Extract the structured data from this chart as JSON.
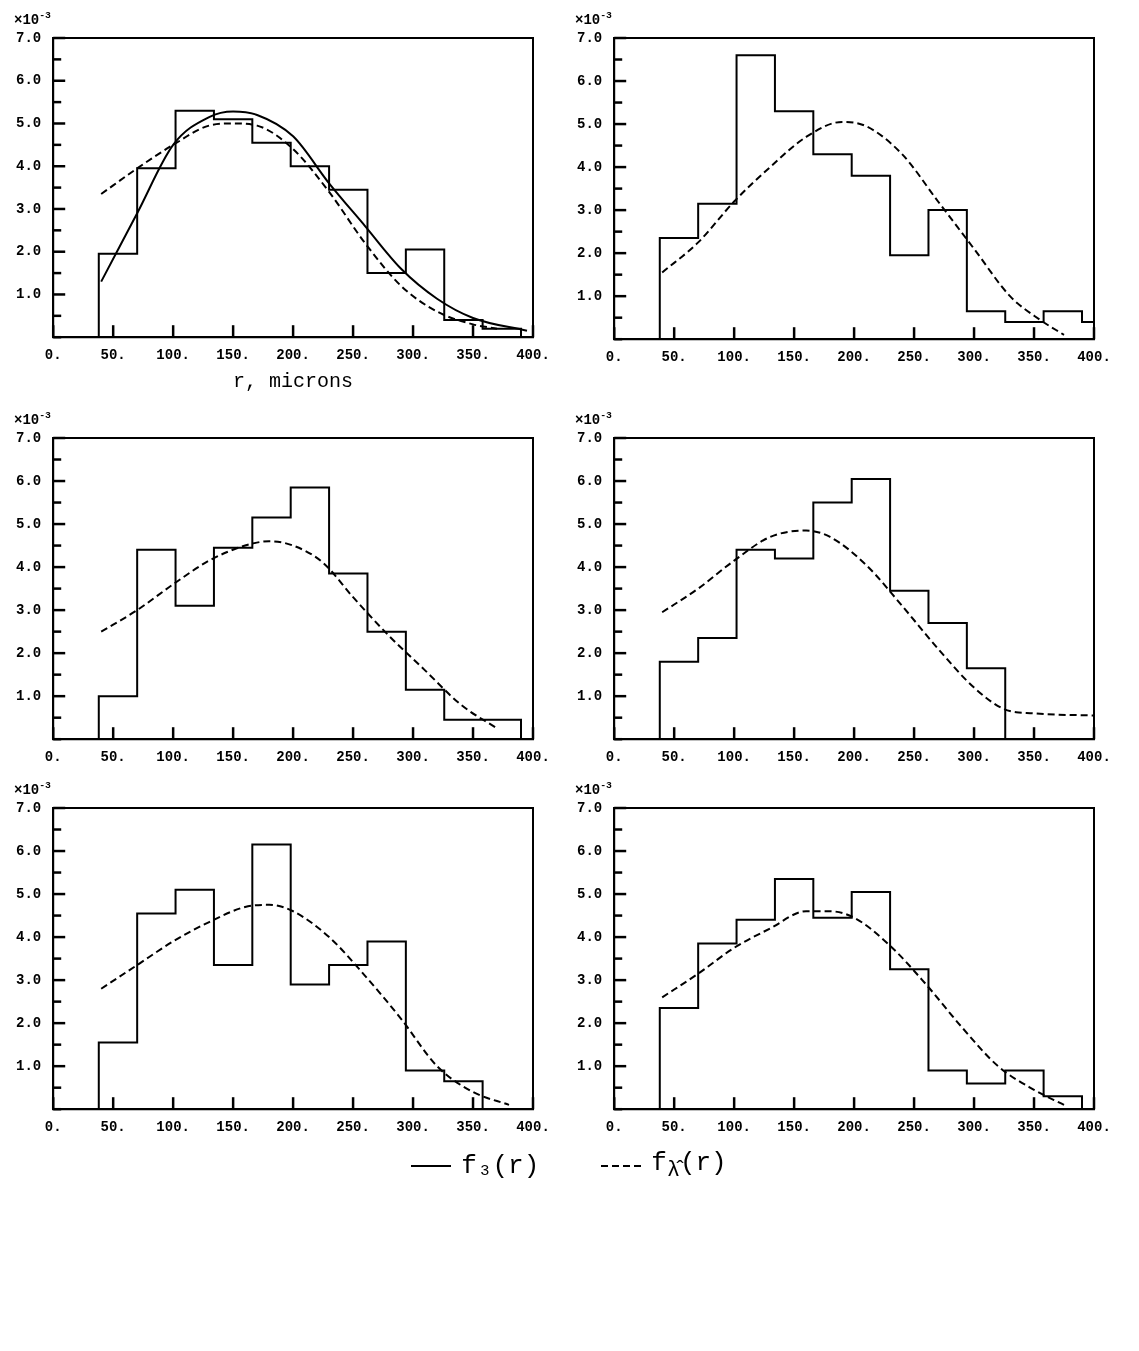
{
  "chart_data": [
    {
      "type": "histogram",
      "ylabel": "×10$^{-3}$",
      "xlabel": "r, microns",
      "color": "#000000",
      "legend": "bottom",
      "bins": [
        38,
        70,
        102,
        134,
        166,
        198,
        230,
        262,
        294,
        326,
        358,
        390
      ],
      "values": [
        1.95,
        3.95,
        5.3,
        5.1,
        4.55,
        4.0,
        3.45,
        1.5,
        2.05,
        0.4,
        0.2
      ],
      "series": [
        {
          "type": "line",
          "name": "f₃(r)",
          "color": "#000000",
          "line_style": "solid",
          "x": [
            40,
            70,
            100,
            130,
            150,
            170,
            200,
            230,
            260,
            290,
            320,
            350,
            395
          ],
          "values": [
            1.3,
            2.9,
            4.5,
            5.15,
            5.28,
            5.2,
            4.7,
            3.6,
            2.6,
            1.6,
            0.9,
            0.45,
            0.15
          ]
        },
        {
          "type": "line",
          "name": "f$_{λ̂}$(r)",
          "color": "#000000",
          "line_style": "dashed",
          "x": [
            40,
            70,
            100,
            130,
            150,
            170,
            200,
            230,
            260,
            290,
            320,
            350,
            370
          ],
          "values": [
            3.35,
            3.95,
            4.5,
            4.95,
            5.0,
            4.95,
            4.4,
            3.4,
            2.2,
            1.2,
            0.6,
            0.3,
            0.2
          ]
        }
      ],
      "xlim": [
        0,
        400
      ],
      "ylim": [
        0,
        7
      ],
      "xticks": [
        {
          "value": 0,
          "label": "0."
        },
        {
          "value": 50,
          "label": "50."
        },
        {
          "value": 100,
          "label": "100."
        },
        {
          "value": 150,
          "label": "150."
        },
        {
          "value": 200,
          "label": "200."
        },
        {
          "value": 250,
          "label": "250."
        },
        {
          "value": 300,
          "label": "300."
        },
        {
          "value": 350,
          "label": "350."
        },
        {
          "value": 400,
          "label": "400."
        }
      ],
      "yticks": [
        {
          "value": 0,
          "label": null
        },
        {
          "value": 0.5,
          "label": null
        },
        {
          "value": 1,
          "label": "1.0"
        },
        {
          "value": 1.5,
          "label": null
        },
        {
          "value": 2,
          "label": "2.0"
        },
        {
          "value": 2.5,
          "label": null
        },
        {
          "value": 3,
          "label": "3.0"
        },
        {
          "value": 3.5,
          "label": null
        },
        {
          "value": 4,
          "label": "4.0"
        },
        {
          "value": 4.5,
          "label": null
        },
        {
          "value": 5,
          "label": "5.0"
        },
        {
          "value": 5.5,
          "label": null
        },
        {
          "value": 6,
          "label": "6.0"
        },
        {
          "value": 6.5,
          "label": null
        },
        {
          "value": 7,
          "label": "7.0"
        }
      ]
    },
    {
      "type": "histogram",
      "ylabel": "×10$^{-3}$",
      "color": "#000000",
      "bins": [
        38,
        70,
        102,
        134,
        166,
        198,
        230,
        262,
        294,
        326,
        358,
        390,
        400
      ],
      "values": [
        2.35,
        3.15,
        6.6,
        5.3,
        4.3,
        3.8,
        1.95,
        3.0,
        0.65,
        0.4,
        0.65,
        0.4
      ],
      "series": [
        {
          "type": "line",
          "color": "#000000",
          "line_style": "dashed",
          "x": [
            40,
            70,
            100,
            130,
            160,
            190,
            210,
            240,
            270,
            300,
            330,
            355,
            375
          ],
          "values": [
            1.55,
            2.25,
            3.2,
            4.0,
            4.7,
            5.05,
            4.95,
            4.3,
            3.2,
            2.1,
            1.0,
            0.45,
            0.1
          ]
        }
      ],
      "xlim": [
        0,
        400
      ],
      "ylim": [
        0,
        7
      ],
      "xticks": [
        {
          "value": 0,
          "label": "0."
        },
        {
          "value": 50,
          "label": "50."
        },
        {
          "value": 100,
          "label": "100."
        },
        {
          "value": 150,
          "label": "150."
        },
        {
          "value": 200,
          "label": "200."
        },
        {
          "value": 250,
          "label": "250."
        },
        {
          "value": 300,
          "label": "300."
        },
        {
          "value": 350,
          "label": "350."
        },
        {
          "value": 400,
          "label": "400."
        }
      ],
      "yticks": [
        {
          "value": 0,
          "label": null
        },
        {
          "value": 0.5,
          "label": null
        },
        {
          "value": 1,
          "label": "1.0"
        },
        {
          "value": 1.5,
          "label": null
        },
        {
          "value": 2,
          "label": "2.0"
        },
        {
          "value": 2.5,
          "label": null
        },
        {
          "value": 3,
          "label": "3.0"
        },
        {
          "value": 3.5,
          "label": null
        },
        {
          "value": 4,
          "label": "4.0"
        },
        {
          "value": 4.5,
          "label": null
        },
        {
          "value": 5,
          "label": "5.0"
        },
        {
          "value": 5.5,
          "label": null
        },
        {
          "value": 6,
          "label": "6.0"
        },
        {
          "value": 6.5,
          "label": null
        },
        {
          "value": 7,
          "label": "7.0"
        }
      ]
    },
    {
      "type": "histogram",
      "ylabel": "×10$^{-3}$",
      "color": "#000000",
      "bins": [
        38,
        70,
        102,
        134,
        166,
        198,
        230,
        262,
        294,
        326,
        358,
        390
      ],
      "values": [
        1.0,
        4.4,
        3.1,
        4.45,
        5.15,
        5.85,
        3.85,
        2.5,
        1.15,
        0.45,
        0.45
      ],
      "series": [
        {
          "type": "line",
          "color": "#000000",
          "line_style": "dashed",
          "x": [
            40,
            70,
            100,
            130,
            160,
            180,
            200,
            225,
            250,
            280,
            310,
            340,
            370
          ],
          "values": [
            2.5,
            3.0,
            3.6,
            4.15,
            4.5,
            4.6,
            4.5,
            4.1,
            3.3,
            2.4,
            1.6,
            0.8,
            0.25
          ]
        }
      ],
      "xlim": [
        0,
        400
      ],
      "ylim": [
        0,
        7
      ],
      "xticks": [
        {
          "value": 0,
          "label": "0."
        },
        {
          "value": 50,
          "label": "50."
        },
        {
          "value": 100,
          "label": "100."
        },
        {
          "value": 150,
          "label": "150."
        },
        {
          "value": 200,
          "label": "200."
        },
        {
          "value": 250,
          "label": "250."
        },
        {
          "value": 300,
          "label": "300."
        },
        {
          "value": 350,
          "label": "350."
        },
        {
          "value": 400,
          "label": "400."
        }
      ],
      "yticks": [
        {
          "value": 0,
          "label": null
        },
        {
          "value": 0.5,
          "label": null
        },
        {
          "value": 1,
          "label": "1.0"
        },
        {
          "value": 1.5,
          "label": null
        },
        {
          "value": 2,
          "label": "2.0"
        },
        {
          "value": 2.5,
          "label": null
        },
        {
          "value": 3,
          "label": "3.0"
        },
        {
          "value": 3.5,
          "label": null
        },
        {
          "value": 4,
          "label": "4.0"
        },
        {
          "value": 4.5,
          "label": null
        },
        {
          "value": 5,
          "label": "5.0"
        },
        {
          "value": 5.5,
          "label": null
        },
        {
          "value": 6,
          "label": "6.0"
        },
        {
          "value": 6.5,
          "label": null
        },
        {
          "value": 7,
          "label": "7.0"
        }
      ]
    },
    {
      "type": "histogram",
      "ylabel": "×10$^{-3}$",
      "color": "#000000",
      "bins": [
        38,
        70,
        102,
        134,
        166,
        198,
        230,
        262,
        294,
        326
      ],
      "values": [
        1.8,
        2.35,
        4.4,
        4.2,
        5.5,
        6.05,
        3.45,
        2.7,
        1.65
      ],
      "series": [
        {
          "type": "line",
          "color": "#000000",
          "line_style": "dashed",
          "x": [
            40,
            70,
            100,
            130,
            160,
            180,
            210,
            240,
            270,
            300,
            325,
            350,
            400
          ],
          "values": [
            2.95,
            3.5,
            4.15,
            4.7,
            4.85,
            4.7,
            4.05,
            3.1,
            2.1,
            1.2,
            0.7,
            0.6,
            0.55
          ]
        }
      ],
      "xlim": [
        0,
        400
      ],
      "ylim": [
        0,
        7
      ],
      "xticks": [
        {
          "value": 0,
          "label": "0."
        },
        {
          "value": 50,
          "label": "50."
        },
        {
          "value": 100,
          "label": "100."
        },
        {
          "value": 150,
          "label": "150."
        },
        {
          "value": 200,
          "label": "200."
        },
        {
          "value": 250,
          "label": "250."
        },
        {
          "value": 300,
          "label": "300."
        },
        {
          "value": 350,
          "label": "350."
        },
        {
          "value": 400,
          "label": "400."
        }
      ],
      "yticks": [
        {
          "value": 0,
          "label": null
        },
        {
          "value": 0.5,
          "label": null
        },
        {
          "value": 1,
          "label": "1.0"
        },
        {
          "value": 1.5,
          "label": null
        },
        {
          "value": 2,
          "label": "2.0"
        },
        {
          "value": 2.5,
          "label": null
        },
        {
          "value": 3,
          "label": "3.0"
        },
        {
          "value": 3.5,
          "label": null
        },
        {
          "value": 4,
          "label": "4.0"
        },
        {
          "value": 4.5,
          "label": null
        },
        {
          "value": 5,
          "label": "5.0"
        },
        {
          "value": 5.5,
          "label": null
        },
        {
          "value": 6,
          "label": "6.0"
        },
        {
          "value": 6.5,
          "label": null
        },
        {
          "value": 7,
          "label": "7.0"
        }
      ]
    },
    {
      "type": "histogram",
      "ylabel": "×10$^{-3}$",
      "color": "#000000",
      "bins": [
        38,
        70,
        102,
        134,
        166,
        198,
        230,
        262,
        294,
        326,
        358
      ],
      "values": [
        1.55,
        4.55,
        5.1,
        3.35,
        6.15,
        2.9,
        3.35,
        3.9,
        0.9,
        0.65
      ],
      "series": [
        {
          "type": "line",
          "color": "#000000",
          "line_style": "dashed",
          "x": [
            40,
            70,
            100,
            130,
            160,
            180,
            200,
            230,
            260,
            290,
            320,
            350,
            380
          ],
          "values": [
            2.8,
            3.35,
            3.9,
            4.35,
            4.7,
            4.75,
            4.6,
            4.0,
            3.1,
            2.1,
            1.0,
            0.4,
            0.1
          ]
        }
      ],
      "xlim": [
        0,
        400
      ],
      "ylim": [
        0,
        7
      ],
      "xticks": [
        {
          "value": 0,
          "label": "0."
        },
        {
          "value": 50,
          "label": "50."
        },
        {
          "value": 100,
          "label": "100."
        },
        {
          "value": 150,
          "label": "150."
        },
        {
          "value": 200,
          "label": "200."
        },
        {
          "value": 250,
          "label": "250."
        },
        {
          "value": 300,
          "label": "300."
        },
        {
          "value": 350,
          "label": "350."
        },
        {
          "value": 400,
          "label": "400."
        }
      ],
      "yticks": [
        {
          "value": 0,
          "label": null
        },
        {
          "value": 0.5,
          "label": null
        },
        {
          "value": 1,
          "label": "1.0"
        },
        {
          "value": 1.5,
          "label": null
        },
        {
          "value": 2,
          "label": "2.0"
        },
        {
          "value": 2.5,
          "label": null
        },
        {
          "value": 3,
          "label": "3.0"
        },
        {
          "value": 3.5,
          "label": null
        },
        {
          "value": 4,
          "label": "4.0"
        },
        {
          "value": 4.5,
          "label": null
        },
        {
          "value": 5,
          "label": "5.0"
        },
        {
          "value": 5.5,
          "label": null
        },
        {
          "value": 6,
          "label": "6.0"
        },
        {
          "value": 6.5,
          "label": null
        },
        {
          "value": 7,
          "label": "7.0"
        }
      ]
    },
    {
      "type": "histogram",
      "ylabel": "×10$^{-3}$",
      "color": "#000000",
      "bins": [
        38,
        70,
        102,
        134,
        166,
        198,
        230,
        262,
        294,
        326,
        358,
        390
      ],
      "values": [
        2.35,
        3.85,
        4.4,
        5.35,
        4.45,
        5.05,
        3.25,
        0.9,
        0.6,
        0.9,
        0.3
      ],
      "series": [
        {
          "type": "line",
          "color": "#000000",
          "line_style": "dashed",
          "x": [
            40,
            70,
            100,
            130,
            160,
            180,
            200,
            230,
            260,
            290,
            320,
            350,
            375
          ],
          "values": [
            2.6,
            3.15,
            3.75,
            4.2,
            4.6,
            4.6,
            4.45,
            3.8,
            2.9,
            1.9,
            1.0,
            0.45,
            0.1
          ]
        }
      ],
      "xlim": [
        0,
        400
      ],
      "ylim": [
        0,
        7
      ],
      "xticks": [
        {
          "value": 0,
          "label": "0."
        },
        {
          "value": 50,
          "label": "50."
        },
        {
          "value": 100,
          "label": "100."
        },
        {
          "value": 150,
          "label": "150."
        },
        {
          "value": 200,
          "label": "200."
        },
        {
          "value": 250,
          "label": "250."
        },
        {
          "value": 300,
          "label": "300."
        },
        {
          "value": 350,
          "label": "350."
        },
        {
          "value": 400,
          "label": "400."
        }
      ],
      "yticks": [
        {
          "value": 0,
          "label": null
        },
        {
          "value": 0.5,
          "label": null
        },
        {
          "value": 1,
          "label": "1.0"
        },
        {
          "value": 1.5,
          "label": null
        },
        {
          "value": 2,
          "label": "2.0"
        },
        {
          "value": 2.5,
          "label": null
        },
        {
          "value": 3,
          "label": "3.0"
        },
        {
          "value": 3.5,
          "label": null
        },
        {
          "value": 4,
          "label": "4.0"
        },
        {
          "value": 4.5,
          "label": null
        },
        {
          "value": 5,
          "label": "5.0"
        },
        {
          "value": 5.5,
          "label": null
        },
        {
          "value": 6,
          "label": "6.0"
        },
        {
          "value": 6.5,
          "label": null
        },
        {
          "value": 7,
          "label": "7.0"
        }
      ]
    }
  ]
}
